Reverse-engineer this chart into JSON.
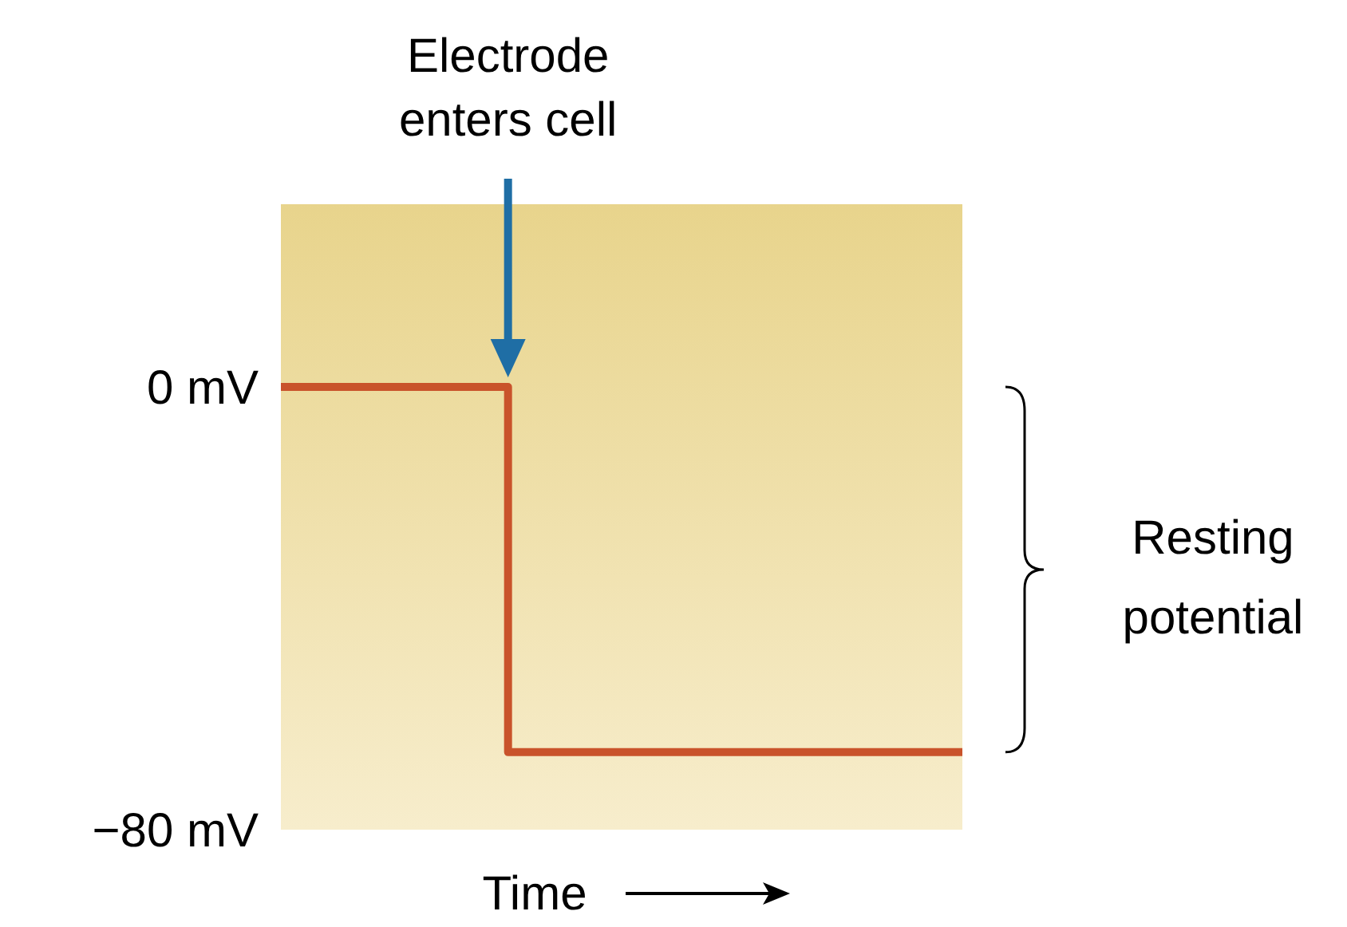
{
  "chart_data": {
    "type": "step",
    "xlabel": "Time",
    "categories": [
      null,
      null,
      null,
      null
    ],
    "series": [
      {
        "color": "#c9532b",
        "values": [
          0,
          -66,
          -66,
          -66
        ]
      }
    ],
    "ylim": [
      -80,
      33
    ],
    "yticks": [
      {
        "value": 0,
        "label": "0 mV"
      },
      {
        "value": -80,
        "label": "−80 mV"
      }
    ],
    "tick_labels": "y",
    "annotations": [
      "Electrode enters cell",
      "Resting potential"
    ]
  }
}
